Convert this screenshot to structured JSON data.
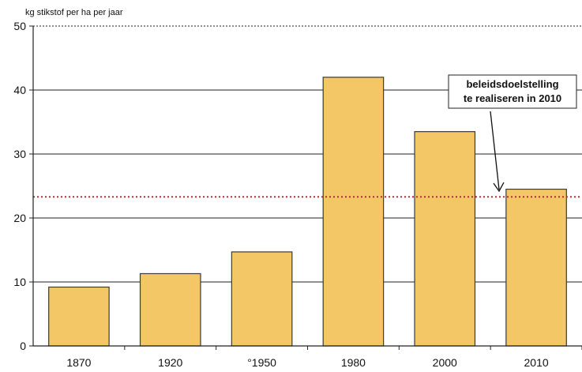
{
  "chart_data": {
    "type": "bar",
    "ylabel": "kg stikstof per ha per jaar",
    "categories": [
      "1870",
      "1920",
      "°1950",
      "1980",
      "2000",
      "2010"
    ],
    "values": [
      9.2,
      11.3,
      14.7,
      42.0,
      33.5,
      24.5
    ],
    "ylim": [
      0,
      50
    ],
    "yticks": [
      0,
      10,
      20,
      30,
      40,
      50
    ],
    "grid": true,
    "reference_line": {
      "value": 23.3,
      "label_lines": [
        "beleidsdoelstelling",
        "te realiseren in 2010"
      ]
    },
    "colors": {
      "bar_fill": "#f3c766",
      "bar_stroke": "#3a3a3a",
      "grid": "#222222",
      "reference_line": "#b0303a"
    }
  }
}
